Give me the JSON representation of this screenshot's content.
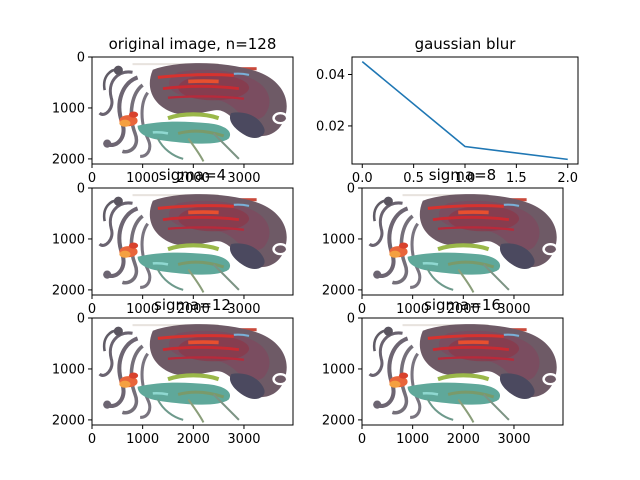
{
  "figure": {
    "background": "#ffffff",
    "line_color": "#1f77b4"
  },
  "chart_data": [
    {
      "type": "image",
      "title": "original image, n=128",
      "xticks": [
        "0",
        "1000",
        "2000",
        "3000"
      ],
      "yticks": [
        "0",
        "1000",
        "2000"
      ],
      "xlim": [
        0,
        3968
      ],
      "ylim": [
        2100,
        0
      ],
      "blur": 0
    },
    {
      "type": "line",
      "title": "gaussian blur",
      "x": [
        0,
        1,
        2
      ],
      "y": [
        0.045,
        0.012,
        0.007
      ],
      "xlim": [
        -0.1,
        2.1
      ],
      "ylim": [
        0.0052,
        0.0468
      ],
      "xticks": [
        "0.0",
        "0.5",
        "1.0",
        "1.5",
        "2.0"
      ],
      "xtick_values": [
        0,
        0.5,
        1,
        1.5,
        2
      ],
      "yticks": [
        "0.04",
        "0.02"
      ],
      "ytick_values": [
        0.04,
        0.02
      ],
      "grid": false
    },
    {
      "type": "image",
      "title": "sigma=4",
      "xticks": [
        "0",
        "1000",
        "2000",
        "3000"
      ],
      "yticks": [
        "0",
        "1000",
        "2000"
      ],
      "xlim": [
        0,
        3968
      ],
      "ylim": [
        2100,
        0
      ],
      "blur": 4
    },
    {
      "type": "image",
      "title": "sigma=8",
      "xticks": [
        "0",
        "1000",
        "2000",
        "3000"
      ],
      "yticks": [
        "0",
        "1000",
        "2000"
      ],
      "xlim": [
        0,
        3968
      ],
      "ylim": [
        2100,
        0
      ],
      "blur": 8
    },
    {
      "type": "image",
      "title": "sigma=12",
      "xticks": [
        "0",
        "1000",
        "2000",
        "3000"
      ],
      "yticks": [
        "0",
        "1000",
        "2000"
      ],
      "xlim": [
        0,
        3968
      ],
      "ylim": [
        2100,
        0
      ],
      "blur": 12
    },
    {
      "type": "image",
      "title": "sigma=16",
      "xticks": [
        "0",
        "1000",
        "2000",
        "3000"
      ],
      "yticks": [
        "0",
        "1000",
        "2000"
      ],
      "xlim": [
        0,
        3968
      ],
      "ylim": [
        2100,
        0
      ],
      "blur": 16
    }
  ]
}
